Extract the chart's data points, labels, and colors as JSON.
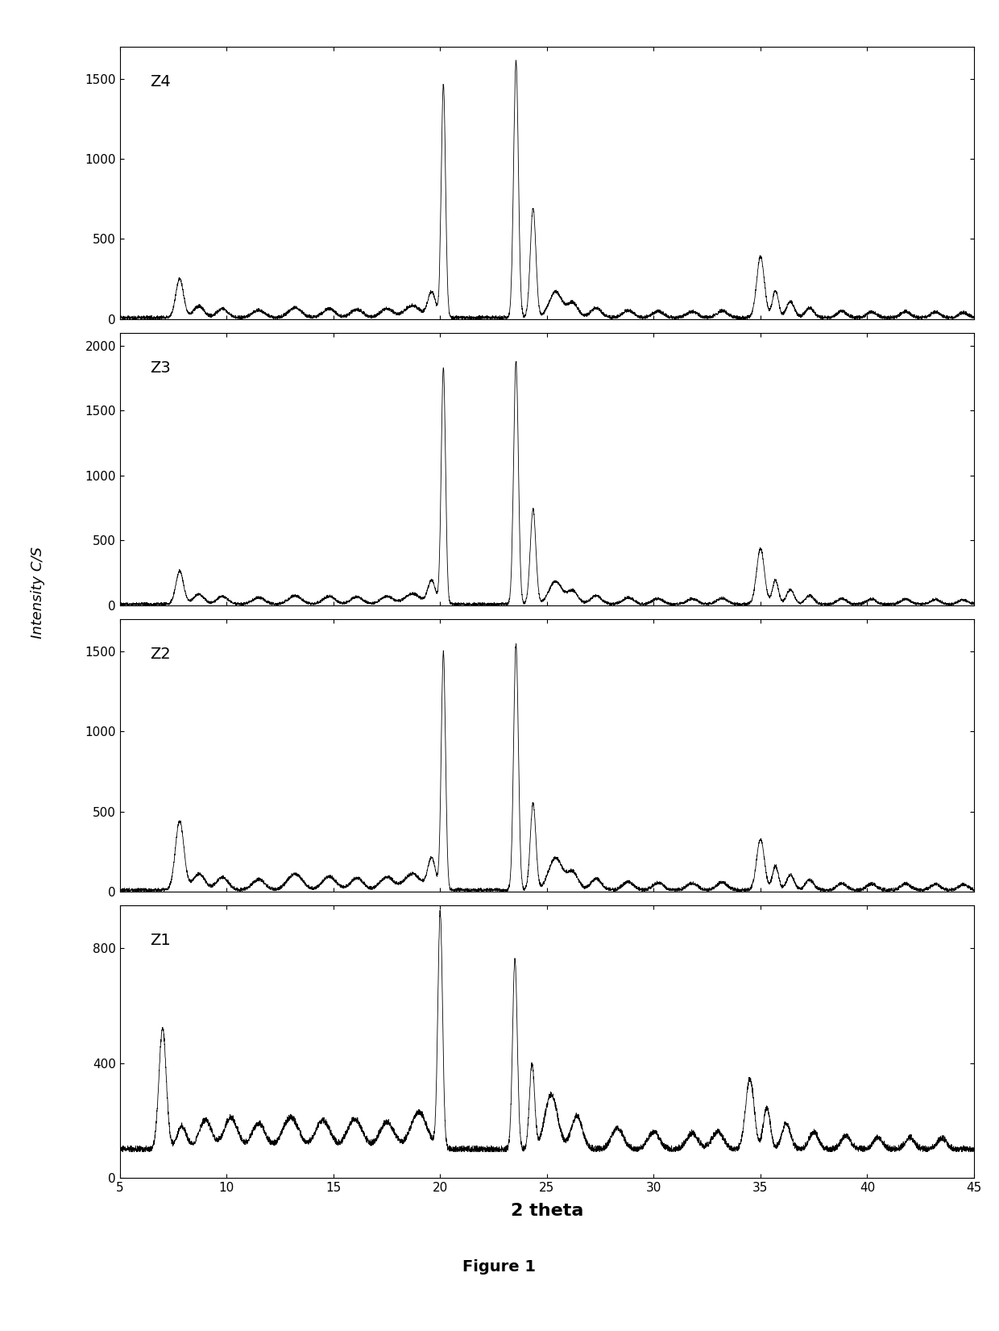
{
  "panels": [
    "Z4",
    "Z3",
    "Z2",
    "Z1"
  ],
  "xlim": [
    5,
    45
  ],
  "xlabel": "2 theta",
  "ylabel": "Intensity C/S",
  "figure_label": "Figure 1",
  "panel_configs": {
    "Z4": {
      "ylim": [
        0,
        1700
      ],
      "yticks": [
        0,
        500,
        1000,
        1500
      ]
    },
    "Z3": {
      "ylim": [
        0,
        2100
      ],
      "yticks": [
        0,
        500,
        1000,
        1500,
        2000
      ]
    },
    "Z2": {
      "ylim": [
        0,
        1700
      ],
      "yticks": [
        0,
        500,
        1000,
        1500
      ]
    },
    "Z1": {
      "ylim": [
        0,
        950
      ],
      "yticks": [
        0,
        400,
        800
      ]
    }
  },
  "line_color": "#000000",
  "background_color": "#ffffff",
  "font_size_label": 14,
  "font_size_tick": 11,
  "font_size_panel": 14,
  "font_size_xlabel": 16,
  "font_size_ylabel": 13,
  "font_size_figure_label": 14
}
